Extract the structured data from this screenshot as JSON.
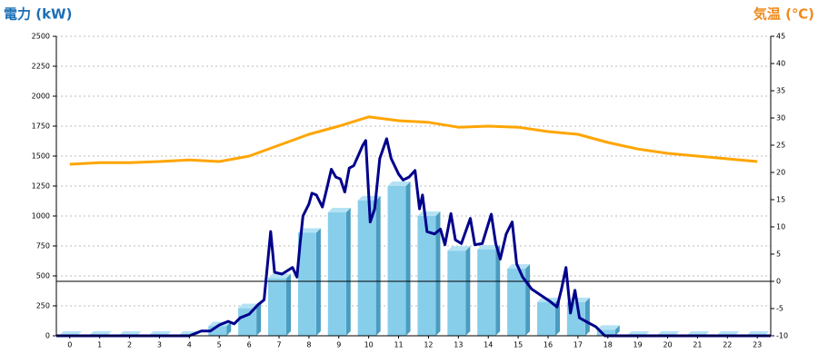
{
  "chart_data": {
    "type": "bar",
    "y_label": "電力 (kW)",
    "y2_label": "気温 (℃)",
    "categories": [
      "0",
      "1",
      "2",
      "3",
      "4",
      "5",
      "6",
      "7",
      "8",
      "9",
      "10",
      "11",
      "12",
      "13",
      "14",
      "15",
      "16",
      "17",
      "18",
      "19",
      "20",
      "21",
      "22",
      "23"
    ],
    "xlim": [
      -0.45,
      23.45
    ],
    "ylim": [
      0,
      2500
    ],
    "yticks": [
      0,
      250,
      500,
      750,
      1000,
      1250,
      1500,
      1750,
      2000,
      2250,
      2500
    ],
    "y2lim": [
      -10,
      45
    ],
    "y2ticks": [
      -10,
      -5,
      0,
      5,
      10,
      15,
      20,
      25,
      30,
      35,
      40,
      45
    ],
    "y2_reference": 0,
    "grid": true,
    "series": [
      {
        "type": "bar",
        "color": "#87ceeb",
        "values": [
          0,
          0,
          0,
          0,
          0,
          80,
          230,
          480,
          860,
          1030,
          1130,
          1250,
          1000,
          710,
          720,
          560,
          280,
          280,
          50,
          0,
          0,
          0,
          0,
          0
        ]
      },
      {
        "type": "line",
        "color": "#00008b",
        "x": [
          -0.45,
          4,
          4.4,
          4.7,
          5,
          5.3,
          5.5,
          5.7,
          6,
          6.3,
          6.5,
          6.72,
          6.85,
          7.1,
          7.45,
          7.6,
          7.7,
          7.8,
          8,
          8.1,
          8.25,
          8.45,
          8.6,
          8.75,
          8.9,
          9.05,
          9.2,
          9.35,
          9.5,
          9.67,
          9.8,
          9.9,
          10.05,
          10.2,
          10.37,
          10.6,
          10.75,
          11,
          11.15,
          11.35,
          11.55,
          11.7,
          11.8,
          11.95,
          12.2,
          12.4,
          12.55,
          12.75,
          12.9,
          13.1,
          13.4,
          13.55,
          13.8,
          14.1,
          14.25,
          14.4,
          14.6,
          14.8,
          14.95,
          15.15,
          15.45,
          15.75,
          16.05,
          16.3,
          16.45,
          16.6,
          16.75,
          16.9,
          17.05,
          17.3,
          17.6,
          17.9,
          23.45
        ],
        "values": [
          0,
          0,
          40,
          40,
          90,
          120,
          100,
          150,
          180,
          260,
          300,
          870,
          530,
          515,
          570,
          490,
          760,
          1000,
          1100,
          1190,
          1175,
          1075,
          1230,
          1390,
          1325,
          1310,
          1200,
          1400,
          1420,
          1515,
          1590,
          1630,
          950,
          1060,
          1480,
          1645,
          1480,
          1350,
          1300,
          1325,
          1380,
          1060,
          1175,
          870,
          850,
          890,
          760,
          1020,
          800,
          770,
          980,
          760,
          770,
          1015,
          770,
          640,
          850,
          950,
          600,
          490,
          390,
          340,
          290,
          240,
          390,
          570,
          190,
          380,
          150,
          115,
          75,
          0,
          0
        ]
      },
      {
        "type": "line",
        "axis": "y2",
        "color": "#ffa500",
        "values": [
          21.5,
          21.8,
          21.8,
          22,
          22.3,
          22,
          23,
          25,
          27,
          28.5,
          30.2,
          29.5,
          29.2,
          28.3,
          28.5,
          28.3,
          27.5,
          27,
          25.5,
          24.3,
          23.5,
          23,
          22.5,
          22
        ]
      }
    ]
  }
}
